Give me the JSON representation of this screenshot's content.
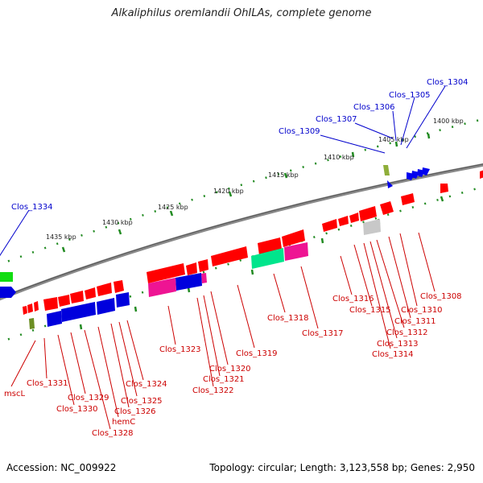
{
  "title": "Alkaliphilus oremlandii OhILAs, complete genome",
  "footer": {
    "accession": "Accession: NC_009922",
    "summary": "Topology: circular; Length: 3,123,558 bp; Genes: 2,950"
  },
  "ruler_labels": [
    "1400 kbp",
    "1405 kbp",
    "1410 kbp",
    "1415 kbp",
    "1420 kbp",
    "1425 kbp",
    "1430 kbp",
    "1435 kbp"
  ],
  "gene_labels_upper": [
    "Clos_1304",
    "Clos_1305",
    "Clos_1306",
    "Clos_1307",
    "Clos_1309",
    "Clos_1334"
  ],
  "gene_labels_lower": [
    "Clos_1308",
    "Clos_1310",
    "Clos_1311",
    "Clos_1312",
    "Clos_1313",
    "Clos_1314",
    "Clos_1315",
    "Clos_1316",
    "Clos_1317",
    "Clos_1318",
    "Clos_1319",
    "Clos_1320",
    "Clos_1321",
    "Clos_1322",
    "Clos_1323",
    "Clos_1324",
    "Clos_1325",
    "Clos_1326",
    "hemC",
    "Clos_1328",
    "Clos_1329",
    "Clos_1330",
    "Clos_1331",
    "mscL"
  ],
  "colors": {
    "forward_label": "#0000cc",
    "reverse_label": "#cc0000",
    "red_gene": "#ff0000",
    "blue_gene": "#0000ee",
    "pink_gene": "#ee1493",
    "green_gene": "#00e58c",
    "gray_gene": "#bbbbbb",
    "olive_gene": "#6b8e23",
    "backbone": "#777777",
    "tick": "#228b22"
  }
}
